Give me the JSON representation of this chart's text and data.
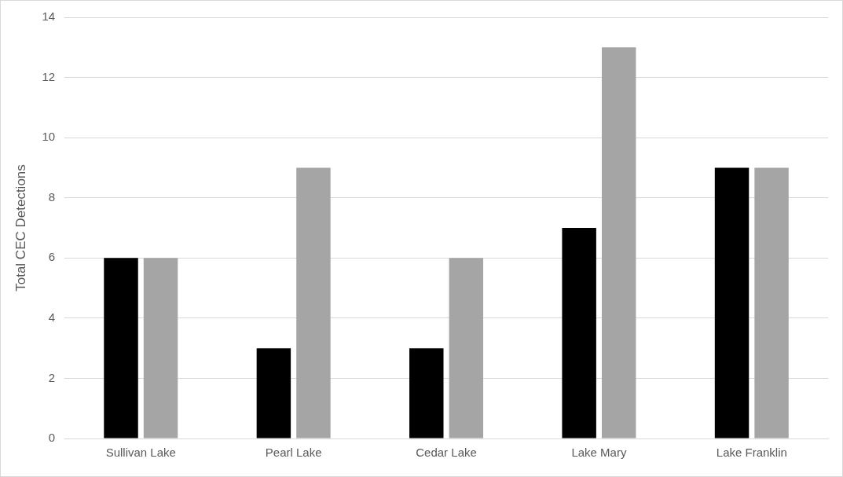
{
  "chart_data": {
    "type": "bar",
    "ylabel": "Total CEC Detections",
    "categories": [
      "Sullivan Lake",
      "Pearl Lake",
      "Cedar Lake",
      "Lake Mary",
      "Lake Franklin"
    ],
    "series": [
      {
        "color": "#000000",
        "values": [
          6,
          3,
          3,
          7,
          9
        ]
      },
      {
        "color": "#a5a5a5",
        "values": [
          6,
          9,
          6,
          13,
          9
        ]
      }
    ],
    "ylim": [
      0,
      14
    ],
    "yticks": [
      0,
      2,
      4,
      6,
      8,
      10,
      12,
      14
    ],
    "grid": "y"
  }
}
